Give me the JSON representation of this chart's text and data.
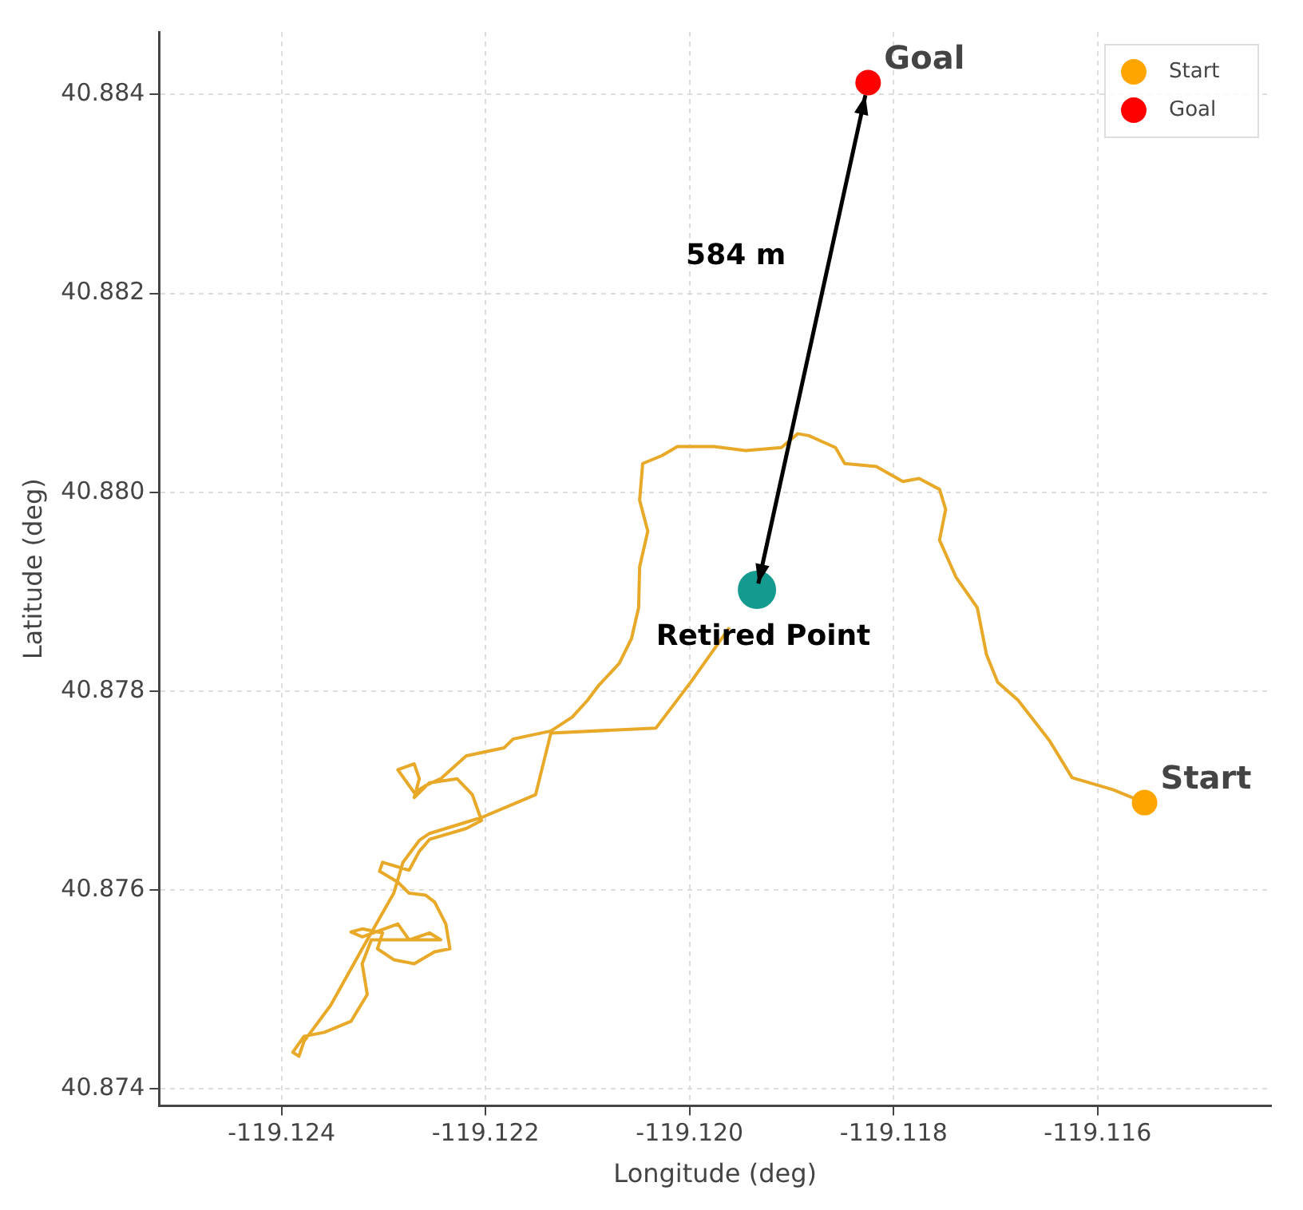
{
  "chart_data": {
    "type": "line",
    "xlabel": "Longitude (deg)",
    "ylabel": "Latitude (deg)",
    "xlim": [
      -119.1252,
      -119.1143
    ],
    "ylim": [
      40.87383,
      40.88463
    ],
    "xticks": [
      {
        "value": -119.124,
        "label": "-119.124"
      },
      {
        "value": -119.122,
        "label": "-119.122"
      },
      {
        "value": -119.12,
        "label": "-119.120"
      },
      {
        "value": -119.118,
        "label": "-119.118"
      },
      {
        "value": -119.116,
        "label": "-119.116"
      }
    ],
    "yticks": [
      {
        "value": 40.874,
        "label": "40.874"
      },
      {
        "value": 40.876,
        "label": "40.876"
      },
      {
        "value": 40.878,
        "label": "40.878"
      },
      {
        "value": 40.88,
        "label": "40.880"
      },
      {
        "value": 40.882,
        "label": "40.882"
      },
      {
        "value": 40.884,
        "label": "40.884"
      }
    ],
    "grid": true,
    "legend": "top right",
    "annotations": [
      "584 m",
      {
        "text": "Retired Point",
        "x": -119.11934,
        "y": 40.87902
      }
    ],
    "series": [
      {
        "type": "line",
        "color": "#e8a828",
        "marker": "none",
        "x": [
          -119.11554,
          -119.11585,
          -119.11625,
          -119.11647,
          -119.11678,
          -119.11698,
          -119.11709,
          -119.11718,
          -119.11739,
          -119.11755,
          -119.11749,
          -119.11755,
          -119.11775,
          -119.11791,
          -119.11817,
          -119.11848,
          -119.11857,
          -119.11883,
          -119.11894,
          -119.1191,
          -119.11945,
          -119.11976,
          -119.12012,
          -119.12027,
          -119.12046,
          -119.12049,
          -119.12041,
          -119.12049,
          -119.1205,
          -119.12057,
          -119.12069,
          -119.12089,
          -119.121,
          -119.12115,
          -119.12136,
          -119.12173,
          -119.12182,
          -119.12219,
          -119.12244,
          -119.12259,
          -119.1227,
          -119.12286,
          -119.1227,
          -119.12265,
          -119.1227,
          -119.12255,
          -119.12228,
          -119.12213,
          -119.12204,
          -119.12219,
          -119.12255,
          -119.12265,
          -119.12275,
          -119.12301,
          -119.12304,
          -119.12286,
          -119.12275,
          -119.12259,
          -119.1225,
          -119.12239,
          -119.12235,
          -119.1225,
          -119.1227,
          -119.1229,
          -119.12306,
          -119.12301,
          -119.12321,
          -119.12332,
          -119.12321,
          -119.12286,
          -119.12275,
          -119.12255,
          -119.12244,
          -119.12312,
          -119.12321,
          -119.12316,
          -119.12332,
          -119.12358,
          -119.12378,
          -119.12389,
          -119.12383,
          -119.12378,
          -119.12352,
          -119.12321,
          -119.1229,
          -119.12281,
          -119.12265,
          -119.12255,
          -119.12204,
          -119.12151,
          -119.12136,
          -119.12033,
          -119.11999,
          -119.11961
        ],
        "values": [
          40.87688,
          40.87701,
          40.87713,
          40.8775,
          40.87791,
          40.87809,
          40.87837,
          40.87884,
          40.87915,
          40.87952,
          40.87983,
          40.88003,
          40.88014,
          40.88011,
          40.88026,
          40.88029,
          40.88045,
          40.88057,
          40.88059,
          40.88045,
          40.88042,
          40.88046,
          40.88046,
          40.88037,
          40.88029,
          40.87992,
          40.87961,
          40.87925,
          40.87884,
          40.87853,
          40.87828,
          40.87806,
          40.87791,
          40.87774,
          40.8776,
          40.87752,
          40.87743,
          40.87735,
          40.87712,
          40.87705,
          40.87698,
          40.87721,
          40.87727,
          40.87712,
          40.87693,
          40.87708,
          40.87712,
          40.87696,
          40.8767,
          40.87662,
          40.87651,
          40.87639,
          40.8762,
          40.87628,
          40.87619,
          40.87608,
          40.87597,
          40.87595,
          40.87588,
          40.87566,
          40.87541,
          40.87538,
          40.87526,
          40.8753,
          40.87541,
          40.87557,
          40.87561,
          40.87558,
          40.87553,
          40.87566,
          40.8755,
          40.87557,
          40.8755,
          40.8755,
          40.87526,
          40.87495,
          40.87468,
          40.87457,
          40.87453,
          40.87437,
          40.87433,
          40.87448,
          40.87484,
          40.87541,
          40.87597,
          40.87628,
          40.8765,
          40.87657,
          40.87673,
          40.87696,
          40.87758,
          40.87763,
          40.87809,
          40.87864
        ]
      },
      {
        "type": "scatter",
        "name": "Start",
        "color": "#ffa500",
        "marker": "circle",
        "x": [
          -119.11554
        ],
        "values": [
          40.87688
        ]
      },
      {
        "type": "scatter",
        "name": "Goal",
        "color": "#ff0000",
        "marker": "circle",
        "x": [
          -119.11825
        ],
        "values": [
          40.88412
        ]
      },
      {
        "type": "scatter",
        "color": "#149a8e",
        "marker": "circle",
        "x": [
          -119.11934
        ],
        "values": [
          40.87902
        ]
      }
    ]
  }
}
